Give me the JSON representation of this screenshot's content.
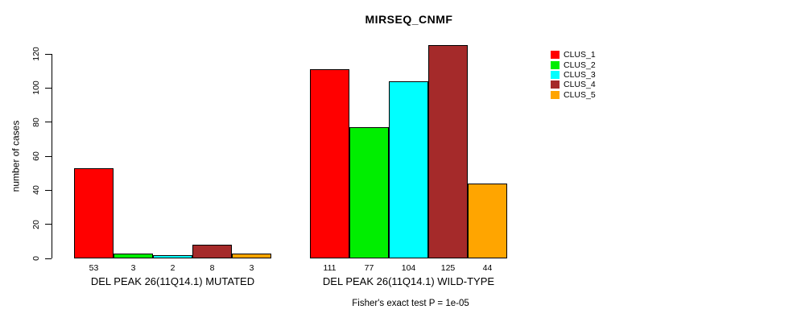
{
  "chart_data": {
    "type": "bar",
    "title": "MIRSEQ_CNMF",
    "ylabel": "number of cases",
    "xlabel": "",
    "yticks": [
      0,
      20,
      40,
      60,
      80,
      100,
      120
    ],
    "ylim": [
      0,
      125
    ],
    "grid": false,
    "legend_position": "right",
    "categories": [
      "DEL PEAK 26(11Q14.1) MUTATED",
      "DEL PEAK 26(11Q14.1) WILD-TYPE"
    ],
    "series": [
      {
        "name": "CLUS_1",
        "color": "#ff0000",
        "values": [
          53,
          111
        ]
      },
      {
        "name": "CLUS_2",
        "color": "#00ee00",
        "values": [
          3,
          77
        ]
      },
      {
        "name": "CLUS_3",
        "color": "#00ffff",
        "values": [
          2,
          104
        ]
      },
      {
        "name": "CLUS_4",
        "color": "#a52a2a",
        "values": [
          8,
          125
        ]
      },
      {
        "name": "CLUS_5",
        "color": "#ffa500",
        "values": [
          3,
          44
        ]
      }
    ],
    "annotation": "Fisher's exact test P = 1e-05"
  }
}
